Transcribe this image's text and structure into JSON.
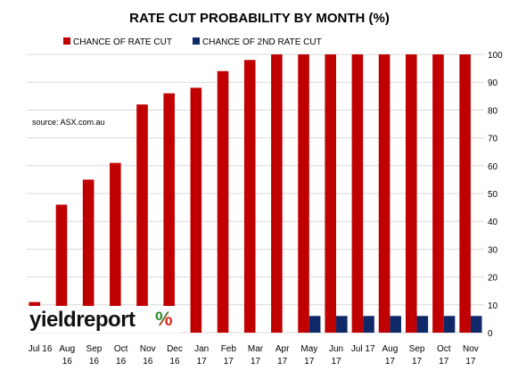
{
  "chart_data": {
    "type": "bar",
    "title": "RATE CUT PROBABILITY BY MONTH  (%)",
    "xlabel": "",
    "ylabel": "",
    "ylim": [
      0,
      100
    ],
    "yticks": [
      0,
      10,
      20,
      30,
      40,
      50,
      60,
      70,
      80,
      90,
      100
    ],
    "grid": true,
    "y_axis_side": "right",
    "legend_position": "top",
    "categories": [
      [
        "Jul 16"
      ],
      [
        "Aug",
        "16"
      ],
      [
        "Sep",
        "16"
      ],
      [
        "Oct",
        "16"
      ],
      [
        "Nov",
        "16"
      ],
      [
        "Dec",
        "16"
      ],
      [
        "Jan",
        "17"
      ],
      [
        "Feb",
        "17"
      ],
      [
        "Mar",
        "17"
      ],
      [
        "Apr",
        "17"
      ],
      [
        "May",
        "17"
      ],
      [
        "Jun",
        "17"
      ],
      [
        "Jul 17"
      ],
      [
        "Aug",
        "17"
      ],
      [
        "Sep",
        "17"
      ],
      [
        "Oct",
        "17"
      ],
      [
        "Nov",
        "17"
      ]
    ],
    "series": [
      {
        "name": "CHANCE OF RATE CUT",
        "color": "#c00000",
        "values": [
          11,
          46,
          55,
          61,
          82,
          86,
          88,
          94,
          98,
          100,
          100,
          100,
          100,
          100,
          100,
          100,
          100
        ]
      },
      {
        "name": "CHANCE OF 2ND RATE CUT",
        "color": "#0f2868",
        "values": [
          0,
          0,
          0,
          0,
          0,
          0,
          0,
          0,
          0,
          0,
          6,
          6,
          6,
          6,
          6,
          6,
          6
        ]
      }
    ],
    "annotation": "source: ASX.com.au"
  },
  "logo": {
    "text": "yieldreport",
    "symbol": "%",
    "symbol_colors": [
      "#2f8f2f",
      "#d9261c"
    ]
  }
}
